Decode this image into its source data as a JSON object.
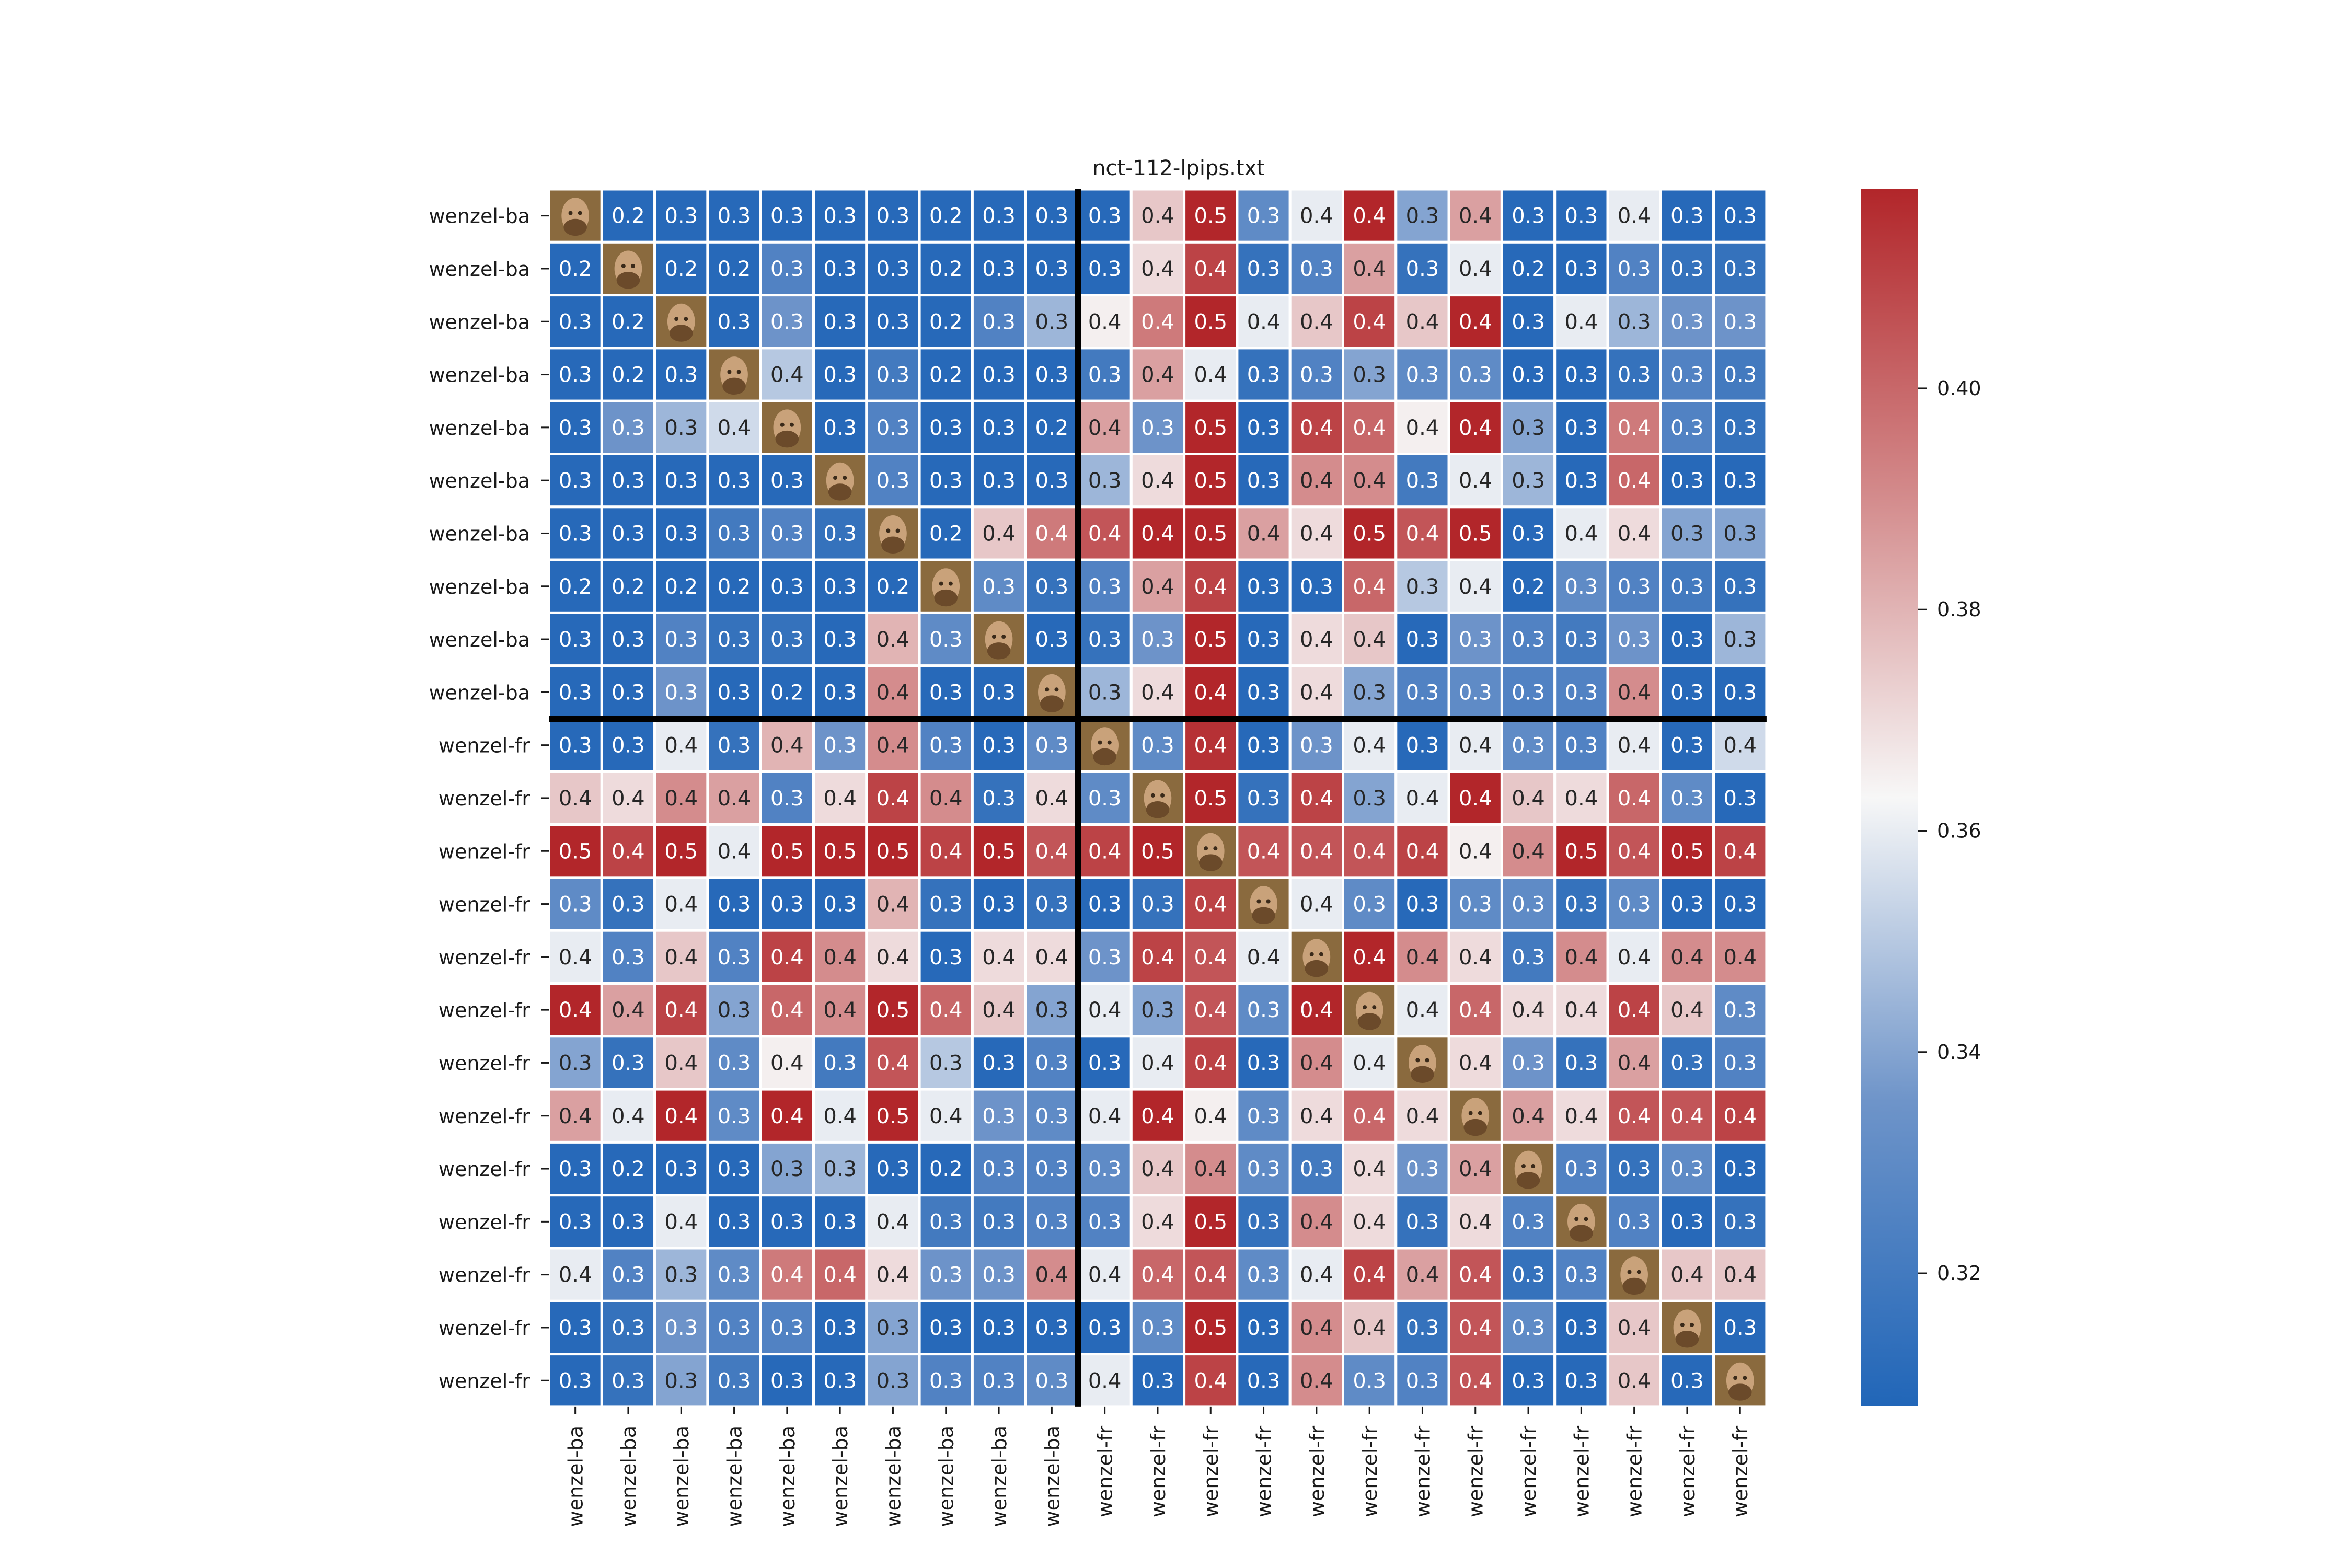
{
  "chart_data": {
    "type": "heatmap",
    "title": "nct-112-lpips.txt",
    "row_labels": [
      "wenzel-ba",
      "wenzel-ba",
      "wenzel-ba",
      "wenzel-ba",
      "wenzel-ba",
      "wenzel-ba",
      "wenzel-ba",
      "wenzel-ba",
      "wenzel-ba",
      "wenzel-ba",
      "wenzel-fr",
      "wenzel-fr",
      "wenzel-fr",
      "wenzel-fr",
      "wenzel-fr",
      "wenzel-fr",
      "wenzel-fr",
      "wenzel-fr",
      "wenzel-fr",
      "wenzel-fr",
      "wenzel-fr",
      "wenzel-fr",
      "wenzel-fr"
    ],
    "col_labels": [
      "wenzel-ba",
      "wenzel-ba",
      "wenzel-ba",
      "wenzel-ba",
      "wenzel-ba",
      "wenzel-ba",
      "wenzel-ba",
      "wenzel-ba",
      "wenzel-ba",
      "wenzel-ba",
      "wenzel-fr",
      "wenzel-fr",
      "wenzel-fr",
      "wenzel-fr",
      "wenzel-fr",
      "wenzel-fr",
      "wenzel-fr",
      "wenzel-fr",
      "wenzel-fr",
      "wenzel-fr",
      "wenzel-fr",
      "wenzel-fr",
      "wenzel-fr"
    ],
    "group_split_index": 10,
    "diagonal": "thumbnail-image",
    "colorbar": {
      "min": 0.308,
      "max": 0.418,
      "ticks": [
        0.32,
        0.34,
        0.36,
        0.38,
        0.4
      ],
      "tick_labels": [
        "0.32",
        "0.34",
        "0.36",
        "0.38",
        "0.40"
      ]
    },
    "colormap": {
      "low": "#2166b8",
      "mid": "#f7f7f7",
      "high": "#b2262a"
    },
    "values": [
      [
        null,
        0.2,
        0.3,
        0.3,
        0.3,
        0.3,
        0.3,
        0.2,
        0.3,
        0.3,
        0.3,
        0.4,
        0.5,
        0.3,
        0.4,
        0.4,
        0.3,
        0.4,
        0.3,
        0.3,
        0.4,
        0.3,
        0.3
      ],
      [
        0.2,
        null,
        0.2,
        0.2,
        0.3,
        0.3,
        0.3,
        0.2,
        0.3,
        0.3,
        0.3,
        0.4,
        0.4,
        0.3,
        0.3,
        0.4,
        0.3,
        0.4,
        0.2,
        0.3,
        0.3,
        0.3,
        0.3
      ],
      [
        0.3,
        0.2,
        null,
        0.3,
        0.3,
        0.3,
        0.3,
        0.2,
        0.3,
        0.3,
        0.4,
        0.4,
        0.5,
        0.4,
        0.4,
        0.4,
        0.4,
        0.4,
        0.3,
        0.4,
        0.3,
        0.3,
        0.3
      ],
      [
        0.3,
        0.2,
        0.3,
        null,
        0.4,
        0.3,
        0.3,
        0.2,
        0.3,
        0.3,
        0.3,
        0.4,
        0.4,
        0.3,
        0.3,
        0.3,
        0.3,
        0.3,
        0.3,
        0.3,
        0.3,
        0.3,
        0.3
      ],
      [
        0.3,
        0.3,
        0.3,
        0.4,
        null,
        0.3,
        0.3,
        0.3,
        0.3,
        0.2,
        0.4,
        0.3,
        0.5,
        0.3,
        0.4,
        0.4,
        0.4,
        0.4,
        0.3,
        0.3,
        0.4,
        0.3,
        0.3
      ],
      [
        0.3,
        0.3,
        0.3,
        0.3,
        0.3,
        null,
        0.3,
        0.3,
        0.3,
        0.3,
        0.3,
        0.4,
        0.5,
        0.3,
        0.4,
        0.4,
        0.3,
        0.4,
        0.3,
        0.3,
        0.4,
        0.3,
        0.3
      ],
      [
        0.3,
        0.3,
        0.3,
        0.3,
        0.3,
        0.3,
        null,
        0.2,
        0.4,
        0.4,
        0.4,
        0.4,
        0.5,
        0.4,
        0.4,
        0.5,
        0.4,
        0.5,
        0.3,
        0.4,
        0.4,
        0.3,
        0.3
      ],
      [
        0.2,
        0.2,
        0.2,
        0.2,
        0.3,
        0.3,
        0.2,
        null,
        0.3,
        0.3,
        0.3,
        0.4,
        0.4,
        0.3,
        0.3,
        0.4,
        0.3,
        0.4,
        0.2,
        0.3,
        0.3,
        0.3,
        0.3
      ],
      [
        0.3,
        0.3,
        0.3,
        0.3,
        0.3,
        0.3,
        0.4,
        0.3,
        null,
        0.3,
        0.3,
        0.3,
        0.5,
        0.3,
        0.4,
        0.4,
        0.3,
        0.3,
        0.3,
        0.3,
        0.3,
        0.3,
        0.3
      ],
      [
        0.3,
        0.3,
        0.3,
        0.3,
        0.2,
        0.3,
        0.4,
        0.3,
        0.3,
        null,
        0.3,
        0.4,
        0.4,
        0.3,
        0.4,
        0.3,
        0.3,
        0.3,
        0.3,
        0.3,
        0.4,
        0.3,
        0.3
      ],
      [
        0.3,
        0.3,
        0.4,
        0.3,
        0.4,
        0.3,
        0.4,
        0.3,
        0.3,
        0.3,
        null,
        0.3,
        0.4,
        0.3,
        0.3,
        0.4,
        0.3,
        0.4,
        0.3,
        0.3,
        0.4,
        0.3,
        0.4
      ],
      [
        0.4,
        0.4,
        0.4,
        0.4,
        0.3,
        0.4,
        0.4,
        0.4,
        0.3,
        0.4,
        0.3,
        null,
        0.5,
        0.3,
        0.4,
        0.3,
        0.4,
        0.4,
        0.4,
        0.4,
        0.4,
        0.3,
        0.3
      ],
      [
        0.5,
        0.4,
        0.5,
        0.4,
        0.5,
        0.5,
        0.5,
        0.4,
        0.5,
        0.4,
        0.4,
        0.5,
        null,
        0.4,
        0.4,
        0.4,
        0.4,
        0.4,
        0.4,
        0.5,
        0.4,
        0.5,
        0.4
      ],
      [
        0.3,
        0.3,
        0.4,
        0.3,
        0.3,
        0.3,
        0.4,
        0.3,
        0.3,
        0.3,
        0.3,
        0.3,
        0.4,
        null,
        0.4,
        0.3,
        0.3,
        0.3,
        0.3,
        0.3,
        0.3,
        0.3,
        0.3
      ],
      [
        0.4,
        0.3,
        0.4,
        0.3,
        0.4,
        0.4,
        0.4,
        0.3,
        0.4,
        0.4,
        0.3,
        0.4,
        0.4,
        0.4,
        null,
        0.4,
        0.4,
        0.4,
        0.3,
        0.4,
        0.4,
        0.4,
        0.4
      ],
      [
        0.4,
        0.4,
        0.4,
        0.3,
        0.4,
        0.4,
        0.5,
        0.4,
        0.4,
        0.3,
        0.4,
        0.3,
        0.4,
        0.3,
        0.4,
        null,
        0.4,
        0.4,
        0.4,
        0.4,
        0.4,
        0.4,
        0.3
      ],
      [
        0.3,
        0.3,
        0.4,
        0.3,
        0.4,
        0.3,
        0.4,
        0.3,
        0.3,
        0.3,
        0.3,
        0.4,
        0.4,
        0.3,
        0.4,
        0.4,
        null,
        0.4,
        0.3,
        0.3,
        0.4,
        0.3,
        0.3
      ],
      [
        0.4,
        0.4,
        0.4,
        0.3,
        0.4,
        0.4,
        0.5,
        0.4,
        0.3,
        0.3,
        0.4,
        0.4,
        0.4,
        0.3,
        0.4,
        0.4,
        0.4,
        null,
        0.4,
        0.4,
        0.4,
        0.4,
        0.4
      ],
      [
        0.3,
        0.2,
        0.3,
        0.3,
        0.3,
        0.3,
        0.3,
        0.2,
        0.3,
        0.3,
        0.3,
        0.4,
        0.4,
        0.3,
        0.3,
        0.4,
        0.3,
        0.4,
        null,
        0.3,
        0.3,
        0.3,
        0.3
      ],
      [
        0.3,
        0.3,
        0.4,
        0.3,
        0.3,
        0.3,
        0.4,
        0.3,
        0.3,
        0.3,
        0.3,
        0.4,
        0.5,
        0.3,
        0.4,
        0.4,
        0.3,
        0.4,
        0.3,
        null,
        0.3,
        0.3,
        0.3
      ],
      [
        0.4,
        0.3,
        0.3,
        0.3,
        0.4,
        0.4,
        0.4,
        0.3,
        0.3,
        0.4,
        0.4,
        0.4,
        0.4,
        0.3,
        0.4,
        0.4,
        0.4,
        0.4,
        0.3,
        0.3,
        null,
        0.4,
        0.4
      ],
      [
        0.3,
        0.3,
        0.3,
        0.3,
        0.3,
        0.3,
        0.3,
        0.3,
        0.3,
        0.3,
        0.3,
        0.3,
        0.5,
        0.3,
        0.4,
        0.4,
        0.3,
        0.4,
        0.3,
        0.3,
        0.4,
        null,
        0.3
      ],
      [
        0.3,
        0.3,
        0.3,
        0.3,
        0.3,
        0.3,
        0.3,
        0.3,
        0.3,
        0.3,
        0.4,
        0.3,
        0.4,
        0.3,
        0.4,
        0.3,
        0.3,
        0.4,
        0.3,
        0.3,
        0.4,
        0.3,
        null
      ]
    ],
    "shade": [
      [
        null,
        0.31,
        0.31,
        0.31,
        0.31,
        0.31,
        0.31,
        0.31,
        0.31,
        0.31,
        0.31,
        0.375,
        0.418,
        0.33,
        0.36,
        0.418,
        0.34,
        0.385,
        0.31,
        0.31,
        0.36,
        0.31,
        0.31
      ],
      [
        0.31,
        null,
        0.31,
        0.31,
        0.325,
        0.31,
        0.31,
        0.31,
        0.31,
        0.31,
        0.31,
        0.37,
        0.41,
        0.315,
        0.325,
        0.385,
        0.315,
        0.36,
        0.31,
        0.31,
        0.325,
        0.315,
        0.315
      ],
      [
        0.31,
        0.31,
        null,
        0.31,
        0.335,
        0.31,
        0.31,
        0.31,
        0.325,
        0.345,
        0.365,
        0.395,
        0.418,
        0.36,
        0.375,
        0.41,
        0.375,
        0.418,
        0.31,
        0.36,
        0.345,
        0.335,
        0.335
      ],
      [
        0.31,
        0.31,
        0.31,
        null,
        0.35,
        0.31,
        0.32,
        0.31,
        0.31,
        0.31,
        0.32,
        0.385,
        0.36,
        0.315,
        0.325,
        0.34,
        0.33,
        0.33,
        0.31,
        0.31,
        0.315,
        0.325,
        0.32
      ],
      [
        0.31,
        0.335,
        0.345,
        0.355,
        null,
        0.31,
        0.325,
        0.31,
        0.31,
        0.31,
        0.385,
        0.335,
        0.418,
        0.31,
        0.41,
        0.4,
        0.365,
        0.418,
        0.34,
        0.31,
        0.395,
        0.325,
        0.315
      ],
      [
        0.31,
        0.31,
        0.31,
        0.31,
        0.31,
        null,
        0.325,
        0.31,
        0.31,
        0.31,
        0.345,
        0.37,
        0.418,
        0.31,
        0.39,
        0.39,
        0.32,
        0.36,
        0.345,
        0.31,
        0.4,
        0.31,
        0.31
      ],
      [
        0.31,
        0.31,
        0.31,
        0.32,
        0.325,
        0.315,
        null,
        0.31,
        0.375,
        0.395,
        0.405,
        0.418,
        0.418,
        0.385,
        0.37,
        0.418,
        0.405,
        0.418,
        0.31,
        0.36,
        0.37,
        0.34,
        0.34
      ],
      [
        0.31,
        0.31,
        0.31,
        0.31,
        0.31,
        0.31,
        0.31,
        null,
        0.33,
        0.315,
        0.325,
        0.385,
        0.41,
        0.31,
        0.31,
        0.4,
        0.35,
        0.36,
        0.31,
        0.33,
        0.325,
        0.32,
        0.315
      ],
      [
        0.31,
        0.31,
        0.325,
        0.315,
        0.315,
        0.31,
        0.38,
        0.33,
        null,
        0.31,
        0.315,
        0.335,
        0.418,
        0.31,
        0.37,
        0.375,
        0.31,
        0.335,
        0.325,
        0.32,
        0.335,
        0.31,
        0.345
      ],
      [
        0.31,
        0.31,
        0.335,
        0.31,
        0.31,
        0.31,
        0.39,
        0.31,
        0.31,
        null,
        0.345,
        0.37,
        0.418,
        0.31,
        0.37,
        0.34,
        0.325,
        0.33,
        0.325,
        0.325,
        0.39,
        0.31,
        0.31
      ],
      [
        0.31,
        0.31,
        0.36,
        0.315,
        0.38,
        0.335,
        0.39,
        0.325,
        0.31,
        0.33,
        null,
        0.33,
        0.415,
        0.31,
        0.335,
        0.36,
        0.31,
        0.36,
        0.33,
        0.325,
        0.36,
        0.31,
        0.355
      ],
      [
        0.375,
        0.37,
        0.39,
        0.385,
        0.325,
        0.37,
        0.41,
        0.39,
        0.315,
        0.37,
        0.33,
        null,
        0.418,
        0.315,
        0.41,
        0.34,
        0.36,
        0.418,
        0.375,
        0.37,
        0.4,
        0.33,
        0.31
      ],
      [
        0.418,
        0.41,
        0.418,
        0.36,
        0.418,
        0.418,
        0.418,
        0.41,
        0.418,
        0.405,
        0.41,
        0.418,
        null,
        0.405,
        0.405,
        0.405,
        0.41,
        0.365,
        0.39,
        0.418,
        0.405,
        0.418,
        0.41
      ],
      [
        0.33,
        0.315,
        0.36,
        0.31,
        0.31,
        0.31,
        0.38,
        0.315,
        0.31,
        0.315,
        0.31,
        0.315,
        0.41,
        null,
        0.36,
        0.33,
        0.31,
        0.33,
        0.33,
        0.315,
        0.33,
        0.31,
        0.31
      ],
      [
        0.36,
        0.325,
        0.375,
        0.325,
        0.41,
        0.39,
        0.37,
        0.31,
        0.37,
        0.37,
        0.335,
        0.41,
        0.405,
        0.36,
        null,
        0.418,
        0.39,
        0.37,
        0.32,
        0.39,
        0.36,
        0.39,
        0.39
      ],
      [
        0.418,
        0.385,
        0.41,
        0.34,
        0.4,
        0.39,
        0.418,
        0.4,
        0.375,
        0.34,
        0.36,
        0.34,
        0.405,
        0.33,
        0.418,
        null,
        0.36,
        0.4,
        0.37,
        0.37,
        0.41,
        0.375,
        0.33
      ],
      [
        0.34,
        0.315,
        0.375,
        0.33,
        0.365,
        0.32,
        0.405,
        0.35,
        0.31,
        0.325,
        0.31,
        0.36,
        0.41,
        0.31,
        0.39,
        0.36,
        null,
        0.37,
        0.335,
        0.315,
        0.385,
        0.315,
        0.325
      ],
      [
        0.385,
        0.36,
        0.418,
        0.33,
        0.418,
        0.36,
        0.418,
        0.36,
        0.335,
        0.33,
        0.36,
        0.418,
        0.365,
        0.33,
        0.37,
        0.4,
        0.37,
        null,
        0.385,
        0.37,
        0.405,
        0.405,
        0.41
      ],
      [
        0.31,
        0.31,
        0.31,
        0.31,
        0.34,
        0.345,
        0.31,
        0.31,
        0.325,
        0.325,
        0.33,
        0.375,
        0.39,
        0.33,
        0.32,
        0.37,
        0.335,
        0.385,
        null,
        0.325,
        0.315,
        0.33,
        0.31
      ],
      [
        0.31,
        0.31,
        0.36,
        0.31,
        0.31,
        0.31,
        0.36,
        0.32,
        0.32,
        0.325,
        0.325,
        0.37,
        0.418,
        0.315,
        0.39,
        0.37,
        0.315,
        0.37,
        0.325,
        null,
        0.325,
        0.31,
        0.315
      ],
      [
        0.36,
        0.325,
        0.345,
        0.33,
        0.395,
        0.4,
        0.37,
        0.335,
        0.335,
        0.39,
        0.36,
        0.4,
        0.405,
        0.33,
        0.36,
        0.41,
        0.385,
        0.405,
        0.315,
        0.325,
        null,
        0.375,
        0.375
      ],
      [
        0.31,
        0.315,
        0.335,
        0.325,
        0.325,
        0.31,
        0.34,
        0.31,
        0.31,
        0.31,
        0.31,
        0.33,
        0.418,
        0.31,
        0.39,
        0.375,
        0.315,
        0.405,
        0.33,
        0.31,
        0.375,
        null,
        0.31
      ],
      [
        0.31,
        0.315,
        0.34,
        0.32,
        0.31,
        0.31,
        0.34,
        0.325,
        0.325,
        0.33,
        0.36,
        0.31,
        0.41,
        0.31,
        0.39,
        0.33,
        0.325,
        0.405,
        0.31,
        0.31,
        0.375,
        0.31,
        null
      ]
    ]
  }
}
